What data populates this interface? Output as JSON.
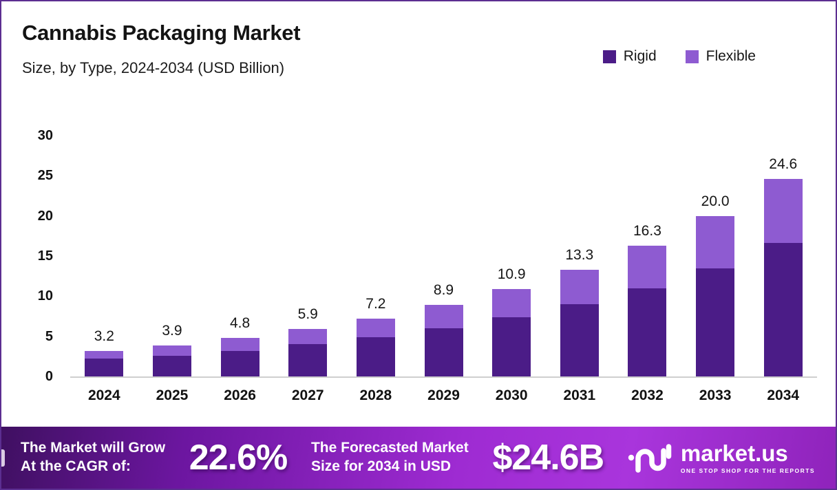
{
  "header": {
    "title": "Cannabis Packaging Market",
    "subtitle": "Size, by Type, 2024-2034 (USD Billion)"
  },
  "legend": [
    {
      "label": "Rigid",
      "color": "#4B1C87"
    },
    {
      "label": "Flexible",
      "color": "#8E5BD1"
    }
  ],
  "chart_data": {
    "type": "bar",
    "stacked": true,
    "title": "Cannabis Packaging Market",
    "subtitle": "Size, by Type, 2024-2034 (USD Billion)",
    "categories": [
      "2024",
      "2025",
      "2026",
      "2027",
      "2028",
      "2029",
      "2030",
      "2031",
      "2032",
      "2033",
      "2034"
    ],
    "series": [
      {
        "name": "Rigid",
        "color": "#4B1C87",
        "values": [
          2.2,
          2.6,
          3.2,
          4.0,
          4.9,
          6.0,
          7.4,
          9.0,
          11.0,
          13.5,
          16.6
        ]
      },
      {
        "name": "Flexible",
        "color": "#8E5BD1",
        "values": [
          1.0,
          1.3,
          1.6,
          1.9,
          2.3,
          2.9,
          3.5,
          4.3,
          5.3,
          6.5,
          8.0
        ]
      }
    ],
    "totals": [
      3.2,
      3.9,
      4.8,
      5.9,
      7.2,
      8.9,
      10.9,
      13.3,
      16.3,
      20.0,
      24.6
    ],
    "total_labels": [
      "3.2",
      "3.9",
      "4.8",
      "5.9",
      "7.2",
      "8.9",
      "10.9",
      "13.3",
      "16.3",
      "20.0",
      "24.6"
    ],
    "xlabel": "",
    "ylabel": "",
    "ylim": [
      0,
      30
    ],
    "yticks": [
      0,
      5,
      10,
      15,
      20,
      25,
      30
    ],
    "grid": false,
    "legend_position": "top-right"
  },
  "footer": {
    "cagr_label_line1": "The Market will Grow",
    "cagr_label_line2": "At the CAGR of:",
    "cagr_value": "22.6%",
    "forecast_label_line1": "The Forecasted Market",
    "forecast_label_line2": "Size for 2034 in USD",
    "forecast_value": "$24.6B",
    "brand": "market.us",
    "brand_tagline": "ONE STOP SHOP FOR THE REPORTS"
  }
}
